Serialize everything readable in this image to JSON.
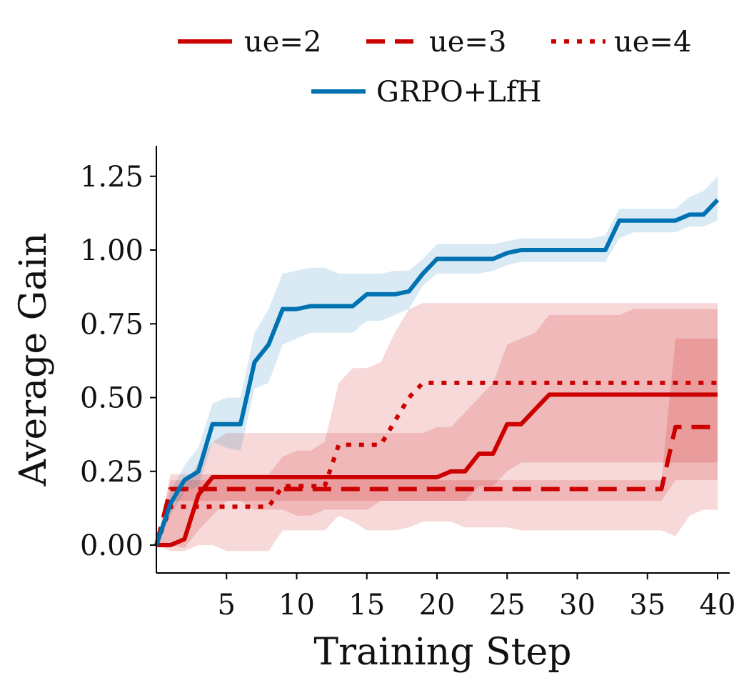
{
  "chart_data": {
    "type": "line",
    "title": "",
    "xlabel": "Training Step",
    "ylabel": "Average Gain",
    "xlim": [
      0,
      41
    ],
    "ylim": [
      -0.1,
      1.35
    ],
    "xticks": [
      5,
      10,
      15,
      20,
      25,
      30,
      35,
      40
    ],
    "xtick_labels": [
      "5",
      "10",
      "15",
      "20",
      "25",
      "30",
      "35",
      "40"
    ],
    "yticks": [
      0.0,
      0.25,
      0.5,
      0.75,
      1.0,
      1.25
    ],
    "ytick_labels": [
      "0.00",
      "0.25",
      "0.50",
      "0.75",
      "1.00",
      "1.25"
    ],
    "grid": false,
    "legend_position": "top-center",
    "x": [
      0,
      1,
      2,
      3,
      4,
      5,
      6,
      7,
      8,
      9,
      10,
      11,
      12,
      13,
      14,
      15,
      16,
      17,
      18,
      19,
      20,
      21,
      22,
      23,
      24,
      25,
      26,
      27,
      28,
      29,
      30,
      31,
      32,
      33,
      34,
      35,
      36,
      37,
      38,
      39,
      40
    ],
    "series": [
      {
        "name": "ue=2",
        "color": "#cc0000",
        "dash": "solid",
        "values": [
          0,
          0,
          0.02,
          0.17,
          0.23,
          0.23,
          0.23,
          0.23,
          0.23,
          0.23,
          0.23,
          0.23,
          0.23,
          0.23,
          0.23,
          0.23,
          0.23,
          0.23,
          0.23,
          0.23,
          0.23,
          0.25,
          0.25,
          0.31,
          0.31,
          0.41,
          0.41,
          0.46,
          0.51,
          0.51,
          0.51,
          0.51,
          0.51,
          0.51,
          0.51,
          0.51,
          0.51,
          0.51,
          0.51,
          0.51,
          0.51
        ],
        "band_lower": [
          0,
          0,
          -0.01,
          0.05,
          0.1,
          0.15,
          0.15,
          0.12,
          0.12,
          0.12,
          0.1,
          0.1,
          0.12,
          0.12,
          0.12,
          0.12,
          0.15,
          0.15,
          0.15,
          0.15,
          0.15,
          0.15,
          0.15,
          0.2,
          0.2,
          0.25,
          0.28,
          0.28,
          0.28,
          0.28,
          0.28,
          0.28,
          0.28,
          0.28,
          0.28,
          0.28,
          0.28,
          0.28,
          0.28,
          0.28,
          0.28
        ],
        "band_upper": [
          0,
          0.12,
          0.2,
          0.28,
          0.35,
          0.38,
          0.38,
          0.38,
          0.38,
          0.38,
          0.38,
          0.38,
          0.38,
          0.38,
          0.38,
          0.38,
          0.38,
          0.38,
          0.38,
          0.38,
          0.4,
          0.4,
          0.45,
          0.5,
          0.55,
          0.68,
          0.7,
          0.72,
          0.78,
          0.78,
          0.78,
          0.78,
          0.78,
          0.78,
          0.8,
          0.8,
          0.8,
          0.8,
          0.8,
          0.8,
          0.8
        ]
      },
      {
        "name": "ue=3",
        "color": "#cc0000",
        "dash": "dashed",
        "values": [
          0,
          0.19,
          0.19,
          0.19,
          0.19,
          0.19,
          0.19,
          0.19,
          0.19,
          0.19,
          0.19,
          0.19,
          0.19,
          0.19,
          0.19,
          0.19,
          0.19,
          0.19,
          0.19,
          0.19,
          0.19,
          0.19,
          0.19,
          0.19,
          0.19,
          0.19,
          0.19,
          0.19,
          0.19,
          0.19,
          0.19,
          0.19,
          0.19,
          0.19,
          0.19,
          0.19,
          0.19,
          0.4,
          0.4,
          0.4,
          0.4
        ],
        "band_lower": [
          0,
          0.15,
          0.15,
          0.15,
          0.15,
          0.15,
          0.15,
          0.15,
          0.15,
          0.15,
          0.15,
          0.15,
          0.15,
          0.15,
          0.15,
          0.15,
          0.15,
          0.15,
          0.15,
          0.15,
          0.15,
          0.15,
          0.15,
          0.15,
          0.15,
          0.15,
          0.15,
          0.15,
          0.15,
          0.15,
          0.15,
          0.15,
          0.15,
          0.15,
          0.15,
          0.15,
          0.15,
          0.22,
          0.22,
          0.22,
          0.22
        ],
        "band_upper": [
          0,
          0.22,
          0.22,
          0.22,
          0.22,
          0.22,
          0.22,
          0.22,
          0.22,
          0.22,
          0.22,
          0.22,
          0.22,
          0.22,
          0.22,
          0.22,
          0.22,
          0.22,
          0.22,
          0.22,
          0.22,
          0.22,
          0.22,
          0.22,
          0.22,
          0.22,
          0.22,
          0.22,
          0.22,
          0.22,
          0.22,
          0.22,
          0.22,
          0.22,
          0.22,
          0.22,
          0.22,
          0.7,
          0.7,
          0.7,
          0.7
        ]
      },
      {
        "name": "ue=4",
        "color": "#cc0000",
        "dash": "dotted",
        "values": [
          0,
          0.13,
          0.13,
          0.13,
          0.13,
          0.13,
          0.13,
          0.13,
          0.13,
          0.2,
          0.2,
          0.2,
          0.2,
          0.34,
          0.34,
          0.34,
          0.34,
          0.42,
          0.5,
          0.55,
          0.55,
          0.55,
          0.55,
          0.55,
          0.55,
          0.55,
          0.55,
          0.55,
          0.55,
          0.55,
          0.55,
          0.55,
          0.55,
          0.55,
          0.55,
          0.55,
          0.55,
          0.55,
          0.55,
          0.55,
          0.55
        ],
        "band_lower": [
          0,
          -0.02,
          -0.02,
          0,
          0,
          -0.02,
          -0.02,
          -0.02,
          -0.02,
          0.05,
          0.05,
          0.05,
          0.05,
          0.1,
          0.08,
          0.05,
          0.05,
          0.05,
          0.06,
          0.08,
          0.08,
          0.08,
          0.06,
          0.06,
          0.06,
          0.06,
          0.05,
          0.05,
          0.05,
          0.05,
          0.05,
          0.05,
          0.05,
          0.05,
          0.05,
          0.05,
          0.05,
          0.03,
          0.1,
          0.12,
          0.12
        ],
        "band_upper": [
          0,
          0.24,
          0.24,
          0.24,
          0.24,
          0.24,
          0.24,
          0.24,
          0.24,
          0.3,
          0.32,
          0.32,
          0.35,
          0.55,
          0.6,
          0.6,
          0.62,
          0.72,
          0.8,
          0.82,
          0.82,
          0.82,
          0.82,
          0.82,
          0.82,
          0.82,
          0.82,
          0.82,
          0.82,
          0.82,
          0.82,
          0.82,
          0.82,
          0.82,
          0.82,
          0.82,
          0.82,
          0.82,
          0.82,
          0.82,
          0.82
        ]
      },
      {
        "name": "GRPO+LfH",
        "color": "#0072b2",
        "dash": "solid",
        "values": [
          0,
          0.14,
          0.22,
          0.25,
          0.41,
          0.41,
          0.41,
          0.62,
          0.68,
          0.8,
          0.8,
          0.81,
          0.81,
          0.81,
          0.81,
          0.85,
          0.85,
          0.85,
          0.86,
          0.92,
          0.97,
          0.97,
          0.97,
          0.97,
          0.97,
          0.99,
          1.0,
          1.0,
          1.0,
          1.0,
          1.0,
          1.0,
          1.0,
          1.1,
          1.1,
          1.1,
          1.1,
          1.1,
          1.12,
          1.12,
          1.17
        ],
        "band_lower": [
          0,
          0.1,
          0.18,
          0.2,
          0.35,
          0.33,
          0.32,
          0.53,
          0.55,
          0.68,
          0.7,
          0.72,
          0.72,
          0.72,
          0.72,
          0.76,
          0.76,
          0.78,
          0.8,
          0.88,
          0.92,
          0.92,
          0.92,
          0.92,
          0.93,
          0.95,
          0.96,
          0.96,
          0.96,
          0.96,
          0.96,
          0.96,
          0.96,
          1.04,
          1.06,
          1.06,
          1.06,
          1.06,
          1.08,
          1.08,
          1.1
        ],
        "band_upper": [
          0,
          0.18,
          0.27,
          0.33,
          0.48,
          0.5,
          0.5,
          0.72,
          0.8,
          0.92,
          0.93,
          0.94,
          0.94,
          0.92,
          0.92,
          0.92,
          0.92,
          0.93,
          0.93,
          0.97,
          1.02,
          1.02,
          1.02,
          1.02,
          1.02,
          1.03,
          1.04,
          1.04,
          1.04,
          1.04,
          1.04,
          1.04,
          1.05,
          1.14,
          1.14,
          1.14,
          1.14,
          1.14,
          1.18,
          1.2,
          1.25
        ]
      }
    ]
  }
}
